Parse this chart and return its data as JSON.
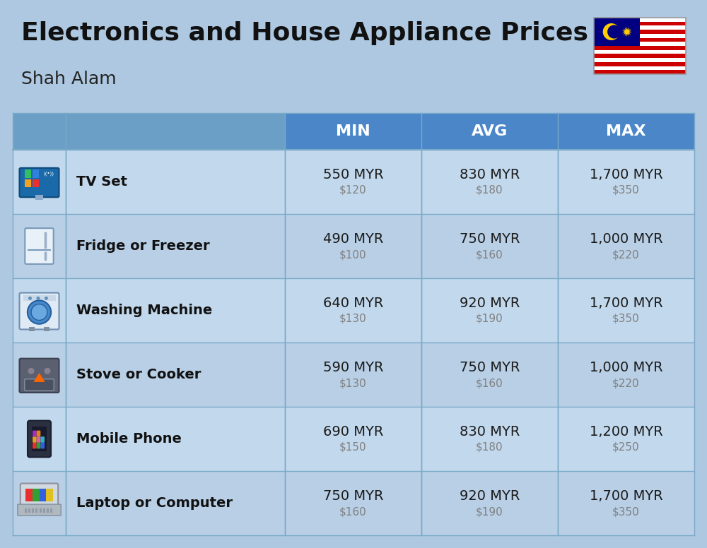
{
  "title": "Electronics and House Appliance Prices",
  "subtitle": "Shah Alam",
  "bg_color": "#adc8e0",
  "header_color": "#4a86c8",
  "header_text_color": "#ffffff",
  "icon_col_bg": "#6b9fc5",
  "name_col_header_bg": "#6b9fc5",
  "row_bg_light": "#c2d8ed",
  "row_bg_dark": "#b8cfe6",
  "item_name_color": "#111111",
  "value_color": "#1a1a1a",
  "usd_color": "#808080",
  "divider_color": "#7aaac8",
  "columns": [
    "MIN",
    "AVG",
    "MAX"
  ],
  "rows": [
    {
      "name": "TV Set",
      "min_myr": "550 MYR",
      "min_usd": "$120",
      "avg_myr": "830 MYR",
      "avg_usd": "$180",
      "max_myr": "1,700 MYR",
      "max_usd": "$350"
    },
    {
      "name": "Fridge or Freezer",
      "min_myr": "490 MYR",
      "min_usd": "$100",
      "avg_myr": "750 MYR",
      "avg_usd": "$160",
      "max_myr": "1,000 MYR",
      "max_usd": "$220"
    },
    {
      "name": "Washing Machine",
      "min_myr": "640 MYR",
      "min_usd": "$130",
      "avg_myr": "920 MYR",
      "avg_usd": "$190",
      "max_myr": "1,700 MYR",
      "max_usd": "$350"
    },
    {
      "name": "Stove or Cooker",
      "min_myr": "590 MYR",
      "min_usd": "$130",
      "avg_myr": "750 MYR",
      "avg_usd": "$160",
      "max_myr": "1,000 MYR",
      "max_usd": "$220"
    },
    {
      "name": "Mobile Phone",
      "min_myr": "690 MYR",
      "min_usd": "$150",
      "avg_myr": "830 MYR",
      "avg_usd": "$180",
      "max_myr": "1,200 MYR",
      "max_usd": "$250"
    },
    {
      "name": "Laptop or Computer",
      "min_myr": "750 MYR",
      "min_usd": "$160",
      "avg_myr": "920 MYR",
      "avg_usd": "$190",
      "max_myr": "1,700 MYR",
      "max_usd": "$350"
    }
  ]
}
